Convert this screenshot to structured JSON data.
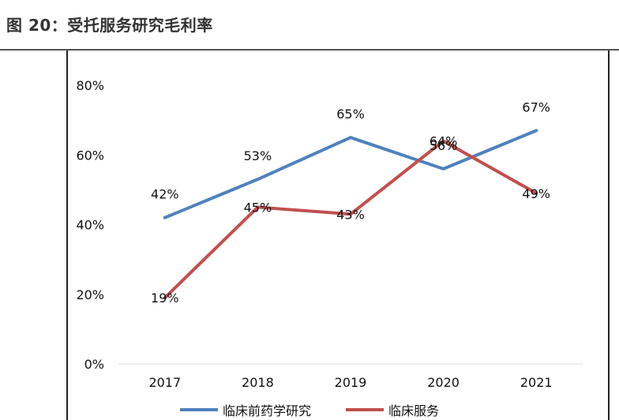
{
  "header": {
    "title": "图 20：受托服务研究毛利率"
  },
  "colors": {
    "series_1": "#4F81BD",
    "series_2": "#C0504D",
    "gridline": "#d9d9d9"
  },
  "chart_data": {
    "type": "line",
    "title": "",
    "xlabel": "",
    "ylabel": "",
    "categories": [
      "2017",
      "2018",
      "2019",
      "2020",
      "2021"
    ],
    "ylim": [
      0,
      80
    ],
    "yticks": [
      "0%",
      "20%",
      "40%",
      "60%",
      "80%"
    ],
    "grid": false,
    "legend_position": "bottom",
    "series": [
      {
        "name": "临床前药学研究",
        "values": [
          42,
          53,
          65,
          56,
          67
        ],
        "labels": [
          "42%",
          "53%",
          "65%",
          "56%",
          "67%"
        ]
      },
      {
        "name": "临床服务",
        "values": [
          19,
          45,
          43,
          64,
          49
        ],
        "labels": [
          "19%",
          "45%",
          "43%",
          "64%",
          "49%"
        ]
      }
    ]
  }
}
